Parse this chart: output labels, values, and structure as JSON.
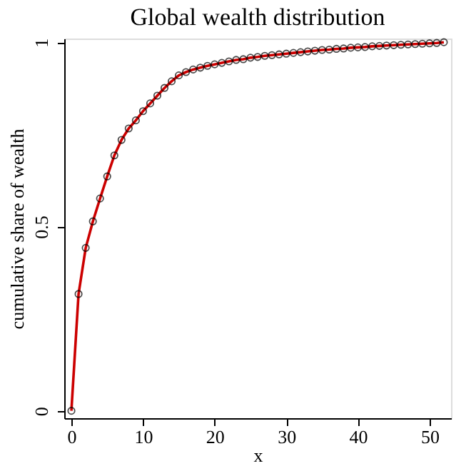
{
  "chart_data": {
    "type": "line",
    "title": "Global wealth distribution",
    "xlabel": "x",
    "ylabel": "cumulative share of wealth",
    "x": [
      0,
      1,
      2,
      3,
      4,
      5,
      6,
      7,
      8,
      9,
      10,
      11,
      12,
      13,
      14,
      15,
      16,
      17,
      18,
      19,
      20,
      21,
      22,
      23,
      24,
      25,
      26,
      27,
      28,
      29,
      30,
      31,
      32,
      33,
      34,
      35,
      36,
      37,
      38,
      39,
      40,
      41,
      42,
      43,
      44,
      45,
      46,
      47,
      48,
      49,
      50,
      51,
      52
    ],
    "series": [
      {
        "color": "#cc0000",
        "values": [
          0,
          0.317,
          0.442,
          0.514,
          0.576,
          0.636,
          0.693,
          0.735,
          0.766,
          0.788,
          0.813,
          0.834,
          0.855,
          0.876,
          0.894,
          0.91,
          0.919,
          0.926,
          0.931,
          0.936,
          0.94,
          0.944,
          0.948,
          0.952,
          0.954,
          0.958,
          0.96,
          0.963,
          0.965,
          0.967,
          0.969,
          0.971,
          0.973,
          0.975,
          0.977,
          0.979,
          0.98,
          0.982,
          0.983,
          0.985,
          0.986,
          0.987,
          0.989,
          0.99,
          0.991,
          0.992,
          0.993,
          0.994,
          0.995,
          0.996,
          0.997,
          0.998,
          1.0
        ]
      }
    ],
    "xlim": [
      -1,
      53
    ],
    "xticks": [
      0,
      10,
      20,
      30,
      40,
      50
    ],
    "ylim": [
      -0.02,
      1.01
    ],
    "yticks": [
      0,
      0.5,
      1
    ],
    "marker": "circle",
    "line_style": "solid",
    "grid": false
  }
}
